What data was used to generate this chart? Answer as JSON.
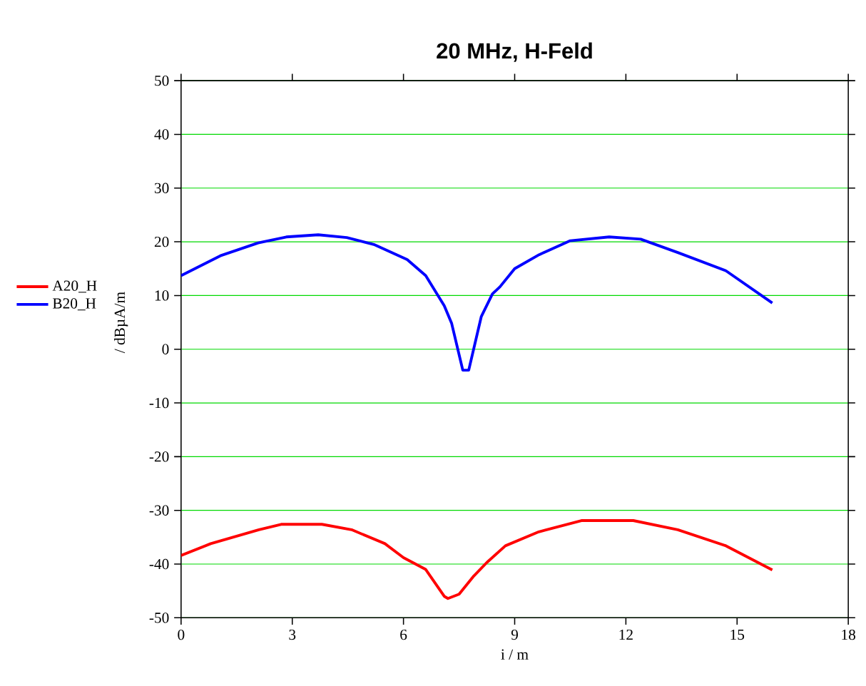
{
  "chart_data": {
    "type": "line",
    "title": "20 MHz, H-Feld",
    "xlabel": "i / m",
    "ylabel": "/ dBµA/m",
    "xlim": [
      0,
      18
    ],
    "xticks": [
      0,
      3,
      6,
      9,
      12,
      15,
      18
    ],
    "ylim": [
      -50,
      50
    ],
    "yticks": [
      -50,
      -40,
      -30,
      -20,
      -10,
      0,
      10,
      20,
      30,
      40,
      50
    ],
    "grid": "y",
    "legend": "left",
    "line_style": "solid",
    "marker": "none",
    "series": [
      {
        "name": "A20_H",
        "color": "#ff0000",
        "x": [
          0,
          0.8,
          2.1,
          2.7,
          3.1,
          3.8,
          4.6,
          5.5,
          6.0,
          6.6,
          7.1,
          7.2,
          7.5,
          7.9,
          8.25,
          8.75,
          9.65,
          10.8,
          11.5,
          12.2,
          13.4,
          14.7,
          15.95
        ],
        "values": [
          -38.4,
          -36.2,
          -33.6,
          -32.6,
          -32.6,
          -32.6,
          -33.6,
          -36.2,
          -38.8,
          -41,
          -46,
          -46.4,
          -45.6,
          -42.2,
          -39.7,
          -36.6,
          -34,
          -31.9,
          -31.9,
          -31.9,
          -33.6,
          -36.6,
          -41.1
        ]
      },
      {
        "name": "B20_H",
        "color": "#0000ff",
        "x": [
          0,
          1.06,
          2.08,
          2.84,
          3.7,
          4.47,
          5.2,
          6.1,
          6.6,
          7.1,
          7.3,
          7.6,
          7.76,
          8.1,
          8.4,
          8.6,
          9.0,
          9.66,
          10.5,
          11.55,
          12.4,
          13.4,
          14.7,
          15.95
        ],
        "values": [
          13.7,
          17.4,
          19.8,
          20.9,
          21.3,
          20.8,
          19.5,
          16.7,
          13.7,
          8.1,
          4.8,
          -3.9,
          -3.9,
          6.1,
          10.3,
          11.6,
          15,
          17.6,
          20.2,
          20.9,
          20.5,
          18,
          14.6,
          8.6
        ]
      }
    ]
  }
}
